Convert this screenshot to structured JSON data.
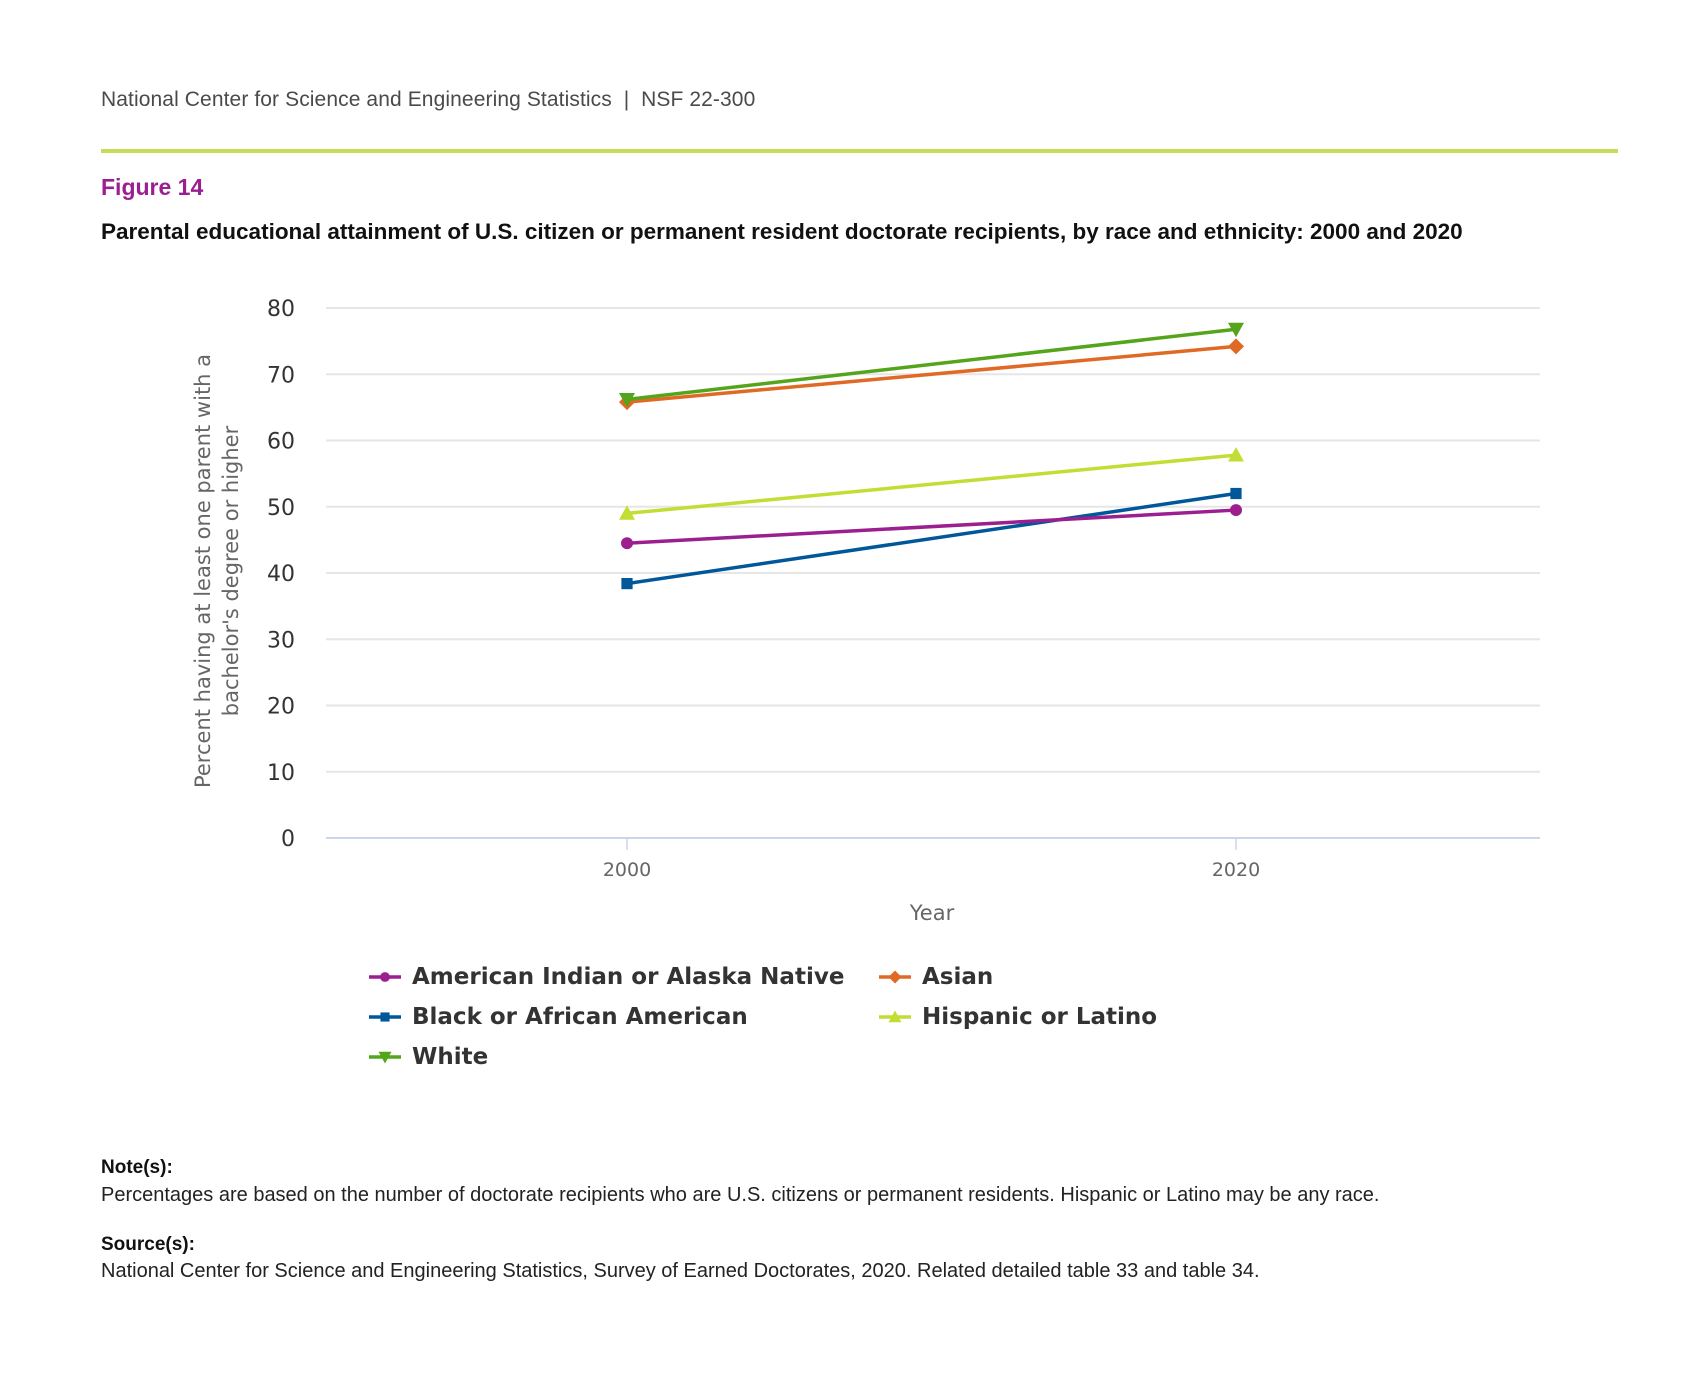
{
  "header": {
    "publisher": "National Center for Science and Engineering Statistics  |  NSF 22-300",
    "figure_label": "Figure 14",
    "figure_title": "Parental educational attainment of U.S. citizen or permanent resident doctorate recipients, by race and ethnicity: 2000 and 2020"
  },
  "colors": {
    "rule": "#c6dd5a",
    "figure_label": "#9b1f8e"
  },
  "chart_data": {
    "type": "line",
    "title": "Parental educational attainment of U.S. citizen or permanent resident doctorate recipients, by race and ethnicity: 2000 and 2020",
    "xlabel": "Year",
    "ylabel": "Percent having at least one parent with a bachelor's degree or higher",
    "ylabel_lines": [
      "Percent having at least one parent with a",
      "bachelor's degree or higher"
    ],
    "x": [
      "2000",
      "2020"
    ],
    "ylim": [
      0,
      80
    ],
    "yticks": [
      0,
      10,
      20,
      30,
      40,
      50,
      60,
      70,
      80
    ],
    "grid": true,
    "legend_position": "bottom",
    "series": [
      {
        "name": "American Indian or Alaska Native",
        "color": "#9b1f8e",
        "marker": "circle",
        "values": [
          44.5,
          49.5
        ]
      },
      {
        "name": "Asian",
        "color": "#e06a25",
        "marker": "diamond",
        "values": [
          65.8,
          74.2
        ]
      },
      {
        "name": "Black or African American",
        "color": "#00579a",
        "marker": "square",
        "values": [
          38.4,
          52.0
        ]
      },
      {
        "name": "Hispanic or Latino",
        "color": "#c1de34",
        "marker": "triangle-up",
        "values": [
          49.0,
          57.8
        ]
      },
      {
        "name": "White",
        "color": "#55a51c",
        "marker": "triangle-down",
        "values": [
          66.2,
          76.8
        ]
      }
    ]
  },
  "notes": {
    "heading": "Note(s):",
    "text": "Percentages are based on the number of doctorate recipients who are U.S. citizens or permanent residents. Hispanic or Latino may be any race."
  },
  "source": {
    "heading": "Source(s):",
    "text": "National Center for Science and Engineering Statistics, Survey of Earned Doctorates, 2020. Related detailed table 33 and table 34."
  }
}
